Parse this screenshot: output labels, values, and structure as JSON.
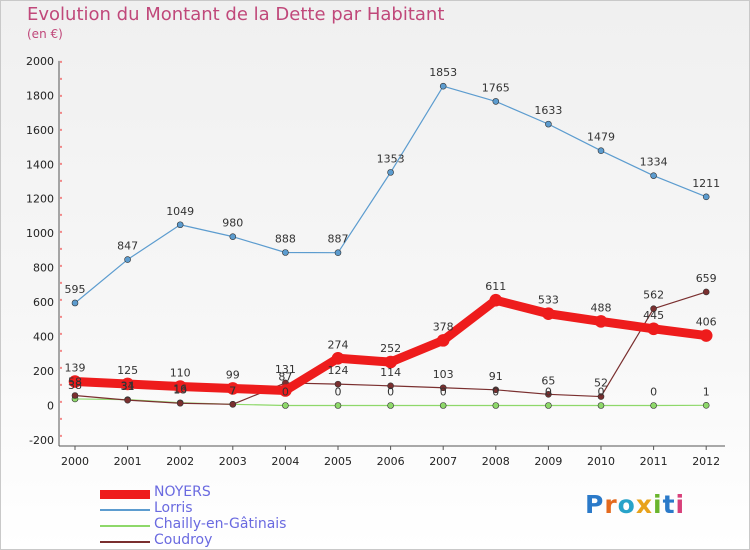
{
  "header": {
    "title": "Evolution du Montant de la Dette par Habitant",
    "subtitle": "(en €)"
  },
  "logo": {
    "text": "Proxiti"
  },
  "chart_data": {
    "type": "line",
    "title": "Evolution du Montant de la Dette par Habitant",
    "subtitle": "(en €)",
    "xlabel": "",
    "ylabel": "",
    "x": [
      "2000",
      "2001",
      "2002",
      "2003",
      "2004",
      "2005",
      "2006",
      "2007",
      "2008",
      "2009",
      "2010",
      "2011",
      "2012"
    ],
    "ylim": [
      -200,
      2000
    ],
    "yticks": [
      -200,
      0,
      200,
      400,
      600,
      800,
      1000,
      1200,
      1400,
      1600,
      1800,
      2000
    ],
    "grid": false,
    "legend_position": "bottom-left",
    "series": [
      {
        "name": "NOYERS",
        "color": "#ee1c1c",
        "values": [
          139,
          125,
          110,
          99,
          87,
          274,
          252,
          378,
          611,
          533,
          488,
          445,
          406
        ]
      },
      {
        "name": "Lorris",
        "color": "#5c9ccf",
        "values": [
          595,
          847,
          1049,
          980,
          888,
          887,
          1353,
          1853,
          1765,
          1633,
          1479,
          1334,
          1211
        ]
      },
      {
        "name": "Chailly-en-Gâtinais",
        "color": "#8ed86a",
        "values": [
          38,
          34,
          16,
          7,
          0,
          0,
          0,
          0,
          0,
          0,
          0,
          0,
          1
        ]
      },
      {
        "name": "Coudroy",
        "color": "#7a2f2f",
        "values": [
          58,
          31,
          13,
          7,
          131,
          124,
          114,
          103,
          91,
          65,
          52,
          562,
          659
        ]
      }
    ]
  }
}
